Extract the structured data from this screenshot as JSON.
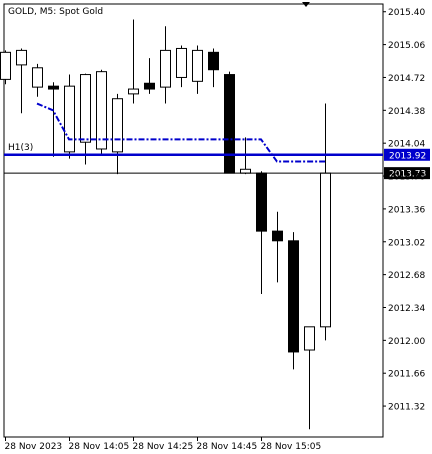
{
  "chart_title": "GOLD, M5:  Spot Gold",
  "chart_data": {
    "type": "candlestick",
    "symbol": "GOLD",
    "timeframe": "M5",
    "description": "Spot Gold",
    "ylim": [
      2011.0,
      2015.48
    ],
    "yticks": [
      "2015.40",
      "2015.06",
      "2014.72",
      "2014.38",
      "2014.04",
      "2013.70",
      "2013.36",
      "2013.02",
      "2012.68",
      "2012.34",
      "2012.00",
      "2011.66",
      "2011.32"
    ],
    "xticks": [
      {
        "label": "28 Nov 2023",
        "index": 0
      },
      {
        "label": "28 Nov 14:05",
        "index": 4
      },
      {
        "label": "28 Nov 14:25",
        "index": 8
      },
      {
        "label": "28 Nov 14:45",
        "index": 12
      },
      {
        "label": "28 Nov 15:05",
        "index": 16
      }
    ],
    "candles": [
      {
        "o": 2014.7,
        "h": 2015.0,
        "l": 2014.65,
        "c": 2014.98
      },
      {
        "o": 2014.85,
        "h": 2015.02,
        "l": 2014.35,
        "c": 2015.0
      },
      {
        "o": 2014.62,
        "h": 2014.86,
        "l": 2014.52,
        "c": 2014.82
      },
      {
        "o": 2014.63,
        "h": 2014.67,
        "l": 2013.9,
        "c": 2014.6
      },
      {
        "o": 2013.95,
        "h": 2014.75,
        "l": 2013.88,
        "c": 2014.63
      },
      {
        "o": 2014.05,
        "h": 2014.76,
        "l": 2013.82,
        "c": 2014.75
      },
      {
        "o": 2013.98,
        "h": 2014.8,
        "l": 2013.92,
        "c": 2014.78
      },
      {
        "o": 2013.95,
        "h": 2014.55,
        "l": 2013.72,
        "c": 2014.5
      },
      {
        "o": 2014.55,
        "h": 2015.32,
        "l": 2014.45,
        "c": 2014.6
      },
      {
        "o": 2014.66,
        "h": 2014.92,
        "l": 2014.55,
        "c": 2014.6
      },
      {
        "o": 2014.62,
        "h": 2015.25,
        "l": 2014.45,
        "c": 2015.0
      },
      {
        "o": 2014.72,
        "h": 2015.05,
        "l": 2014.62,
        "c": 2015.02
      },
      {
        "o": 2014.68,
        "h": 2015.05,
        "l": 2014.55,
        "c": 2015.0
      },
      {
        "o": 2014.98,
        "h": 2015.02,
        "l": 2014.62,
        "c": 2014.8
      },
      {
        "o": 2014.75,
        "h": 2014.78,
        "l": 2013.73,
        "c": 2013.73
      },
      {
        "o": 2013.73,
        "h": 2014.1,
        "l": 2013.72,
        "c": 2013.77
      },
      {
        "o": 2013.73,
        "h": 2013.75,
        "l": 2012.48,
        "c": 2013.13
      },
      {
        "o": 2013.13,
        "h": 2013.33,
        "l": 2012.6,
        "c": 2013.03
      },
      {
        "o": 2013.03,
        "h": 2013.12,
        "l": 2011.7,
        "c": 2011.88
      },
      {
        "o": 2011.9,
        "h": 2012.12,
        "l": 2011.08,
        "c": 2012.14
      },
      {
        "o": 2012.14,
        "h": 2014.45,
        "l": 2012.0,
        "c": 2013.73
      }
    ],
    "indicator": {
      "name": "",
      "style": "dash-dot",
      "color": "#0000cc",
      "start_index": 2,
      "values": [
        2014.45,
        2014.38,
        2014.08,
        2014.08,
        2014.08,
        2014.08,
        2014.08,
        2014.08,
        2014.08,
        2014.08,
        2014.08,
        2014.08,
        2014.08,
        2014.08,
        2014.08,
        2013.85,
        2013.85,
        2013.85,
        2013.85
      ]
    },
    "levels": [
      {
        "name": "H1(3)",
        "value": 2013.92,
        "label": "2013.92",
        "color": "#0000cc"
      },
      {
        "name": "",
        "value": 2013.73,
        "label": "2013.73",
        "color": "#000000"
      }
    ]
  }
}
